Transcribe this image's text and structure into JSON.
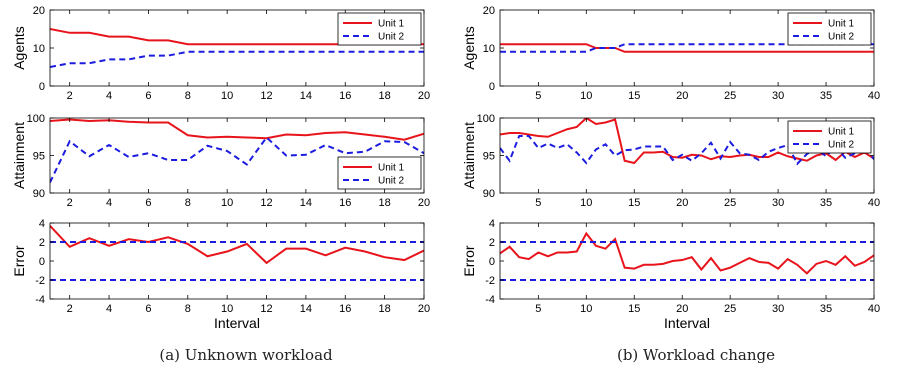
{
  "chart_data": [
    {
      "type": "line",
      "title": "",
      "ylabel": "Agents",
      "xlabel": "",
      "xlim": [
        1,
        20
      ],
      "ylim": [
        0,
        20
      ],
      "xticks": [
        2,
        4,
        6,
        8,
        10,
        12,
        14,
        16,
        18,
        20
      ],
      "yticks": [
        0,
        10,
        20
      ],
      "legend_position": "top-right",
      "series": [
        {
          "name": "Unit 1",
          "color": "#e8141c",
          "style": "solid",
          "x": [
            1,
            2,
            3,
            4,
            5,
            6,
            7,
            8,
            9,
            10,
            11,
            12,
            13,
            14,
            15,
            16,
            17,
            18,
            19,
            20
          ],
          "y": [
            15,
            14,
            14,
            13,
            13,
            12,
            12,
            11,
            11,
            11,
            11,
            11,
            11,
            11,
            11,
            11,
            11,
            11,
            11,
            11
          ]
        },
        {
          "name": "Unit 2",
          "color": "#1c1ce0",
          "style": "dashed",
          "x": [
            1,
            2,
            3,
            4,
            5,
            6,
            7,
            8,
            9,
            10,
            11,
            12,
            13,
            14,
            15,
            16,
            17,
            18,
            19,
            20
          ],
          "y": [
            5,
            6,
            6,
            7,
            7,
            8,
            8,
            9,
            9,
            9,
            9,
            9,
            9,
            9,
            9,
            9,
            9,
            9,
            9,
            9
          ]
        }
      ]
    },
    {
      "type": "line",
      "title": "",
      "ylabel": "Attainment",
      "xlabel": "",
      "xlim": [
        1,
        20
      ],
      "ylim": [
        90,
        100
      ],
      "xticks": [
        2,
        4,
        6,
        8,
        10,
        12,
        14,
        16,
        18,
        20
      ],
      "yticks": [
        90,
        95,
        100
      ],
      "legend_position": "bottom-right",
      "series": [
        {
          "name": "Unit 1",
          "color": "#e8141c",
          "style": "solid",
          "x": [
            1,
            2,
            3,
            4,
            5,
            6,
            7,
            8,
            9,
            10,
            11,
            12,
            13,
            14,
            15,
            16,
            17,
            18,
            19,
            20
          ],
          "y": [
            99.6,
            99.8,
            99.6,
            99.7,
            99.5,
            99.4,
            99.4,
            97.7,
            97.4,
            97.5,
            97.4,
            97.3,
            97.8,
            97.7,
            98.0,
            98.1,
            97.8,
            97.5,
            97.1,
            97.9
          ]
        },
        {
          "name": "Unit 2",
          "color": "#1c1ce0",
          "style": "dashed",
          "x": [
            1,
            2,
            3,
            4,
            5,
            6,
            7,
            8,
            9,
            10,
            11,
            12,
            13,
            14,
            15,
            16,
            17,
            18,
            19,
            20
          ],
          "y": [
            91.4,
            96.9,
            94.9,
            96.4,
            94.8,
            95.3,
            94.4,
            94.4,
            96.3,
            95.6,
            93.8,
            97.4,
            95.0,
            95.1,
            96.4,
            95.3,
            95.5,
            96.9,
            96.8,
            95.3
          ]
        }
      ]
    },
    {
      "type": "line",
      "title": "",
      "ylabel": "Error",
      "xlabel": "Interval",
      "xlim": [
        1,
        20
      ],
      "ylim": [
        -4,
        4
      ],
      "xticks": [
        2,
        4,
        6,
        8,
        10,
        12,
        14,
        16,
        18,
        20
      ],
      "yticks": [
        -4,
        -2,
        0,
        2,
        4
      ],
      "series": [
        {
          "color": "#e8141c",
          "style": "solid",
          "x": [
            1,
            2,
            3,
            4,
            5,
            6,
            7,
            8,
            9,
            10,
            11,
            12,
            13,
            14,
            15,
            16,
            17,
            18,
            19,
            20
          ],
          "y": [
            3.7,
            1.5,
            2.4,
            1.6,
            2.3,
            2.0,
            2.5,
            1.8,
            0.5,
            1.0,
            1.8,
            -0.2,
            1.3,
            1.3,
            0.6,
            1.4,
            1.0,
            0.4,
            0.1,
            1.1
          ]
        },
        {
          "color": "#1c1ce0",
          "style": "dashed",
          "x": [
            1,
            20
          ],
          "y": [
            2,
            2
          ]
        },
        {
          "color": "#1c1ce0",
          "style": "dashed",
          "x": [
            1,
            20
          ],
          "y": [
            -2,
            -2
          ]
        }
      ]
    },
    {
      "type": "line",
      "title": "",
      "ylabel": "Agents",
      "xlabel": "",
      "xlim": [
        1,
        40
      ],
      "ylim": [
        0,
        20
      ],
      "xticks": [
        5,
        10,
        15,
        20,
        25,
        30,
        35,
        40
      ],
      "yticks": [
        0,
        10,
        20
      ],
      "legend_position": "top-right",
      "series": [
        {
          "name": "Unit 1",
          "color": "#e8141c",
          "style": "solid",
          "x": [
            1,
            10,
            11,
            13,
            14,
            40
          ],
          "y": [
            11,
            11,
            10,
            10,
            9,
            9
          ]
        },
        {
          "name": "Unit 2",
          "color": "#1c1ce0",
          "style": "dashed",
          "x": [
            1,
            10,
            11,
            13,
            14,
            40
          ],
          "y": [
            9,
            9,
            10,
            10,
            11,
            11
          ]
        }
      ]
    },
    {
      "type": "line",
      "title": "",
      "ylabel": "Attainment",
      "xlabel": "",
      "xlim": [
        1,
        40
      ],
      "ylim": [
        90,
        100
      ],
      "xticks": [
        5,
        10,
        15,
        20,
        25,
        30,
        35,
        40
      ],
      "yticks": [
        90,
        95,
        100
      ],
      "legend_position": "top-right",
      "series": [
        {
          "name": "Unit 1",
          "color": "#e8141c",
          "style": "solid",
          "x": [
            1,
            2,
            3,
            4,
            5,
            6,
            7,
            8,
            9,
            10,
            11,
            12,
            13,
            14,
            15,
            16,
            17,
            18,
            19,
            20,
            21,
            22,
            23,
            24,
            25,
            26,
            27,
            28,
            29,
            30,
            31,
            32,
            33,
            34,
            35,
            36,
            37,
            38,
            39,
            40
          ],
          "y": [
            97.8,
            98.0,
            98.0,
            97.8,
            97.6,
            97.5,
            98.0,
            98.5,
            98.8,
            100.0,
            99.2,
            99.4,
            99.8,
            94.3,
            94.0,
            95.4,
            95.4,
            95.5,
            94.8,
            94.7,
            95.1,
            95.0,
            94.5,
            94.9,
            94.8,
            95.0,
            95.1,
            94.8,
            94.8,
            95.4,
            94.9,
            94.6,
            94.3,
            95.0,
            95.3,
            94.4,
            95.5,
            94.8,
            95.4,
            94.6
          ]
        },
        {
          "name": "Unit 2",
          "color": "#1c1ce0",
          "style": "dashed",
          "x": [
            1,
            2,
            3,
            4,
            5,
            6,
            7,
            8,
            9,
            10,
            11,
            12,
            13,
            14,
            15,
            16,
            17,
            18,
            19,
            20,
            21,
            22,
            23,
            24,
            25,
            26,
            27,
            28,
            29,
            30,
            31,
            32,
            33,
            34,
            35,
            36,
            37,
            38,
            39,
            40
          ],
          "y": [
            96.0,
            94.3,
            97.6,
            97.6,
            96.0,
            96.6,
            96.0,
            96.5,
            95.4,
            94.0,
            95.8,
            96.5,
            95.0,
            95.7,
            95.8,
            96.2,
            96.2,
            96.2,
            94.4,
            95.1,
            94.3,
            95.3,
            96.7,
            94.6,
            96.8,
            95.3,
            95.1,
            94.4,
            95.5,
            96.0,
            96.4,
            93.9,
            95.2,
            95.9,
            94.9,
            96.2,
            94.7,
            95.3,
            96.2,
            94.5
          ]
        }
      ]
    },
    {
      "type": "line",
      "title": "",
      "ylabel": "Error",
      "xlabel": "Interval",
      "xlim": [
        1,
        40
      ],
      "ylim": [
        -4,
        4
      ],
      "xticks": [
        5,
        10,
        15,
        20,
        25,
        30,
        35,
        40
      ],
      "yticks": [
        -4,
        -2,
        0,
        2,
        4
      ],
      "series": [
        {
          "color": "#e8141c",
          "style": "solid",
          "x": [
            1,
            2,
            3,
            4,
            5,
            6,
            7,
            8,
            9,
            10,
            11,
            12,
            13,
            14,
            15,
            16,
            17,
            18,
            19,
            20,
            21,
            22,
            23,
            24,
            25,
            26,
            27,
            28,
            29,
            30,
            31,
            32,
            33,
            34,
            35,
            36,
            37,
            38,
            39,
            40
          ],
          "y": [
            0.8,
            1.5,
            0.4,
            0.2,
            0.9,
            0.5,
            0.9,
            0.9,
            1.0,
            2.9,
            1.6,
            1.3,
            2.3,
            -0.7,
            -0.8,
            -0.4,
            -0.4,
            -0.3,
            0.0,
            0.1,
            0.4,
            -0.9,
            0.3,
            -1.0,
            -0.7,
            -0.2,
            0.3,
            -0.1,
            -0.2,
            -0.8,
            0.2,
            -0.4,
            -1.3,
            -0.3,
            0.0,
            -0.4,
            0.5,
            -0.5,
            -0.1,
            0.6
          ]
        },
        {
          "color": "#1c1ce0",
          "style": "dashed",
          "x": [
            1,
            40
          ],
          "y": [
            2,
            2
          ]
        },
        {
          "color": "#1c1ce0",
          "style": "dashed",
          "x": [
            1,
            40
          ],
          "y": [
            -2,
            -2
          ]
        }
      ]
    }
  ],
  "captions": {
    "left": "(a) Unknown workload",
    "right": "(b) Workload change"
  }
}
